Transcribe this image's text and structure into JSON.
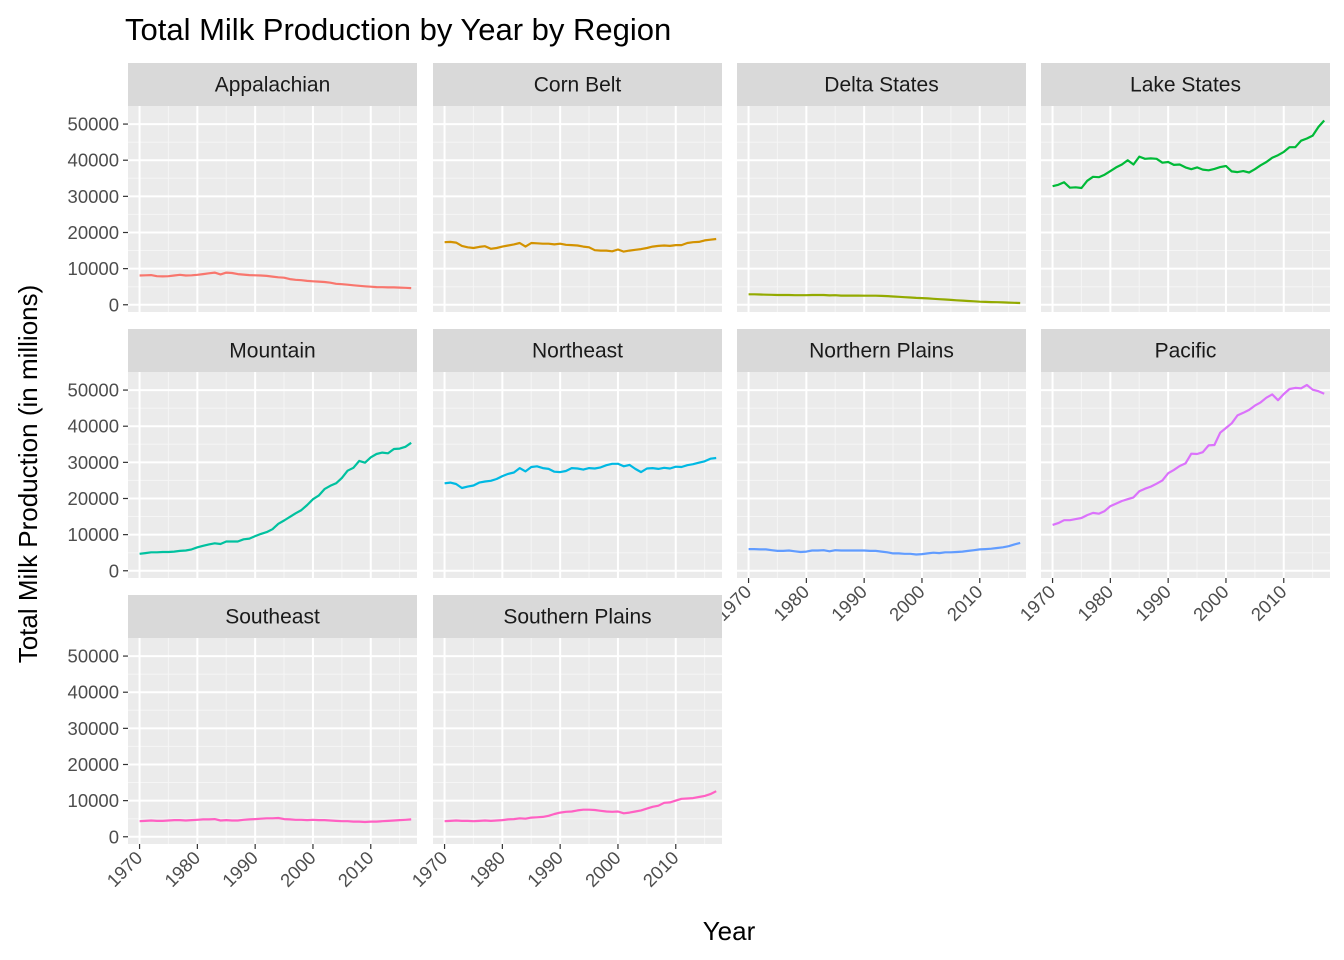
{
  "chart_data": {
    "type": "line",
    "title": "Total Milk Production by Year by Region",
    "xlabel": "Year",
    "ylabel": "Total Milk Production (in millions)",
    "xlim": [
      1968,
      2018
    ],
    "ylim": [
      -2000,
      55000
    ],
    "x_ticks": [
      1970,
      1980,
      1990,
      2000,
      2010
    ],
    "y_ticks": [
      0,
      10000,
      20000,
      30000,
      40000,
      50000
    ],
    "x": [
      1970,
      1971,
      1972,
      1973,
      1974,
      1975,
      1976,
      1977,
      1978,
      1979,
      1980,
      1981,
      1982,
      1983,
      1984,
      1985,
      1986,
      1987,
      1988,
      1989,
      1990,
      1991,
      1992,
      1993,
      1994,
      1995,
      1996,
      1997,
      1998,
      1999,
      2000,
      2001,
      2002,
      2003,
      2004,
      2005,
      2006,
      2007,
      2008,
      2009,
      2010,
      2011,
      2012,
      2013,
      2014,
      2015,
      2016,
      2017
    ],
    "grid": true,
    "legend": "none",
    "facets": [
      {
        "name": "Appalachian",
        "color": "#F8766D",
        "values": [
          8100,
          8150,
          8200,
          7900,
          7850,
          7900,
          8100,
          8300,
          8100,
          8150,
          8300,
          8500,
          8700,
          8900,
          8400,
          8900,
          8800,
          8500,
          8350,
          8200,
          8150,
          8100,
          8000,
          7800,
          7600,
          7500,
          7100,
          6900,
          6800,
          6600,
          6500,
          6400,
          6300,
          6100,
          5800,
          5700,
          5550,
          5400,
          5250,
          5100,
          5000,
          4900,
          4850,
          4800,
          4800,
          4750,
          4700,
          4600
        ]
      },
      {
        "name": "Corn Belt",
        "color": "#D39200",
        "values": [
          17300,
          17400,
          17200,
          16300,
          15900,
          15700,
          16000,
          16200,
          15500,
          15700,
          16100,
          16400,
          16700,
          17100,
          16100,
          17100,
          17000,
          16900,
          16900,
          16700,
          16900,
          16600,
          16500,
          16400,
          16100,
          15900,
          15100,
          15000,
          15000,
          14800,
          15300,
          14700,
          15000,
          15200,
          15400,
          15700,
          16100,
          16300,
          16400,
          16300,
          16500,
          16500,
          17100,
          17300,
          17400,
          17800,
          18000,
          18200
        ]
      },
      {
        "name": "Delta States",
        "color": "#93AA00",
        "values": [
          2900,
          2900,
          2850,
          2800,
          2750,
          2700,
          2700,
          2700,
          2650,
          2650,
          2650,
          2700,
          2700,
          2700,
          2600,
          2650,
          2550,
          2550,
          2550,
          2550,
          2500,
          2500,
          2500,
          2450,
          2400,
          2300,
          2200,
          2100,
          2000,
          1900,
          1850,
          1750,
          1650,
          1550,
          1450,
          1350,
          1250,
          1150,
          1050,
          950,
          850,
          800,
          750,
          700,
          650,
          600,
          550,
          500
        ]
      },
      {
        "name": "Lake States",
        "color": "#00BA38",
        "values": [
          32800,
          33200,
          33900,
          32400,
          32500,
          32300,
          34300,
          35400,
          35300,
          36000,
          37000,
          38000,
          38800,
          40000,
          38800,
          41000,
          40400,
          40500,
          40400,
          39300,
          39500,
          38700,
          38800,
          38000,
          37500,
          38000,
          37400,
          37200,
          37600,
          38100,
          38400,
          36900,
          36700,
          37000,
          36600,
          37500,
          38600,
          39500,
          40700,
          41400,
          42300,
          43600,
          43600,
          45400,
          46000,
          46800,
          49200,
          51000
        ]
      },
      {
        "name": "Mountain",
        "color": "#00C19F",
        "values": [
          4700,
          4900,
          5100,
          5100,
          5200,
          5200,
          5300,
          5500,
          5600,
          5900,
          6500,
          6900,
          7300,
          7600,
          7400,
          8100,
          8100,
          8100,
          8700,
          8900,
          9600,
          10200,
          10700,
          11500,
          13000,
          13900,
          14900,
          15900,
          16800,
          18200,
          19800,
          20800,
          22600,
          23500,
          24200,
          25700,
          27700,
          28500,
          30400,
          29900,
          31400,
          32300,
          32700,
          32500,
          33700,
          33800,
          34300,
          35400
        ]
      },
      {
        "name": "Northeast",
        "color": "#00B9E3",
        "values": [
          24200,
          24400,
          24000,
          22900,
          23300,
          23600,
          24400,
          24700,
          24900,
          25400,
          26200,
          26800,
          27200,
          28400,
          27500,
          28700,
          28900,
          28400,
          28200,
          27400,
          27300,
          27600,
          28400,
          28300,
          28000,
          28400,
          28300,
          28600,
          29200,
          29600,
          29600,
          28900,
          29300,
          28200,
          27300,
          28300,
          28400,
          28200,
          28500,
          28300,
          28800,
          28700,
          29200,
          29500,
          29900,
          30300,
          31000,
          31200
        ]
      },
      {
        "name": "Northern Plains",
        "color": "#619CFF",
        "values": [
          6000,
          6000,
          5900,
          5900,
          5700,
          5500,
          5500,
          5600,
          5400,
          5200,
          5300,
          5600,
          5600,
          5700,
          5400,
          5700,
          5600,
          5600,
          5600,
          5600,
          5600,
          5500,
          5500,
          5300,
          5100,
          4800,
          4800,
          4700,
          4700,
          4500,
          4600,
          4800,
          5000,
          4900,
          5100,
          5100,
          5200,
          5300,
          5500,
          5700,
          5900,
          6000,
          6100,
          6300,
          6500,
          6800,
          7300,
          7700
        ]
      },
      {
        "name": "Pacific",
        "color": "#DB72FB",
        "values": [
          12700,
          13200,
          14000,
          14000,
          14300,
          14600,
          15400,
          16000,
          15800,
          16500,
          17900,
          18600,
          19300,
          19800,
          20300,
          22000,
          22700,
          23300,
          24100,
          25000,
          27000,
          27900,
          29000,
          29700,
          32400,
          32300,
          32800,
          34700,
          34800,
          38200,
          39500,
          40800,
          43000,
          43700,
          44500,
          45700,
          46600,
          47900,
          48800,
          47200,
          48900,
          50300,
          50600,
          50500,
          51400,
          50100,
          49700,
          49000
        ]
      },
      {
        "name": "Southeast",
        "color": "#FF61C3",
        "values": [
          4300,
          4400,
          4500,
          4400,
          4400,
          4500,
          4600,
          4600,
          4500,
          4600,
          4700,
          4800,
          4800,
          4900,
          4500,
          4600,
          4500,
          4500,
          4700,
          4800,
          4900,
          5000,
          5100,
          5100,
          5200,
          4900,
          4800,
          4700,
          4700,
          4600,
          4700,
          4600,
          4600,
          4500,
          4400,
          4300,
          4300,
          4200,
          4200,
          4100,
          4200,
          4200,
          4300,
          4400,
          4500,
          4600,
          4700,
          4800
        ]
      },
      {
        "name": "Southern Plains",
        "color": "#FF61C3",
        "values": [
          4300,
          4400,
          4500,
          4400,
          4400,
          4300,
          4400,
          4500,
          4400,
          4500,
          4600,
          4800,
          4900,
          5100,
          5000,
          5300,
          5400,
          5500,
          5800,
          6300,
          6700,
          6900,
          7000,
          7300,
          7500,
          7500,
          7400,
          7200,
          7000,
          6900,
          7000,
          6500,
          6700,
          7000,
          7300,
          7800,
          8300,
          8600,
          9400,
          9500,
          10000,
          10500,
          10600,
          10700,
          11000,
          11300,
          11800,
          12600
        ]
      }
    ]
  }
}
